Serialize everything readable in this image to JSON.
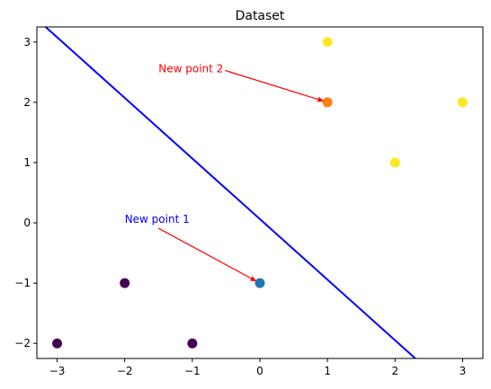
{
  "chart_data": {
    "type": "scatter",
    "title": "Dataset",
    "xlabel": "",
    "ylabel": "",
    "xlim": [
      -3.3,
      3.3
    ],
    "ylim": [
      -2.25,
      3.25
    ],
    "xticks": [
      -3,
      -2,
      -1,
      0,
      1,
      2,
      3
    ],
    "yticks": [
      -2,
      -1,
      0,
      1,
      2,
      3
    ],
    "xtick_labels": [
      "−3",
      "−2",
      "−1",
      "0",
      "1",
      "2",
      "3"
    ],
    "ytick_labels": [
      "−2",
      "−1",
      "0",
      "1",
      "2",
      "3"
    ],
    "grid": false,
    "points": [
      {
        "x": -3,
        "y": -2,
        "color": "#440154"
      },
      {
        "x": -2,
        "y": -1,
        "color": "#440154"
      },
      {
        "x": -1,
        "y": -2,
        "color": "#440154"
      },
      {
        "x": 1,
        "y": 3,
        "color": "#fde725"
      },
      {
        "x": 2,
        "y": 1,
        "color": "#fde725"
      },
      {
        "x": 3,
        "y": 2,
        "color": "#fde725"
      },
      {
        "x": 0,
        "y": -1,
        "color": "#1f77b4"
      },
      {
        "x": 1,
        "y": 2,
        "color": "#ff7f0e"
      }
    ],
    "decision_line": {
      "points": [
        [
          -3.3,
          3.38
        ],
        [
          2.3,
          -2.25
        ]
      ],
      "color": "#0000ff"
    },
    "annotations": [
      {
        "text": "New point 1",
        "color": "#0000ff",
        "text_x": -2,
        "text_y": 0,
        "target_x": 0,
        "target_y": -1,
        "arrow_color": "#ff0000"
      },
      {
        "text": "New point 2",
        "color": "#ff0000",
        "text_x": -1.5,
        "text_y": 2.5,
        "target_x": 1,
        "target_y": 2,
        "arrow_color": "#ff0000"
      }
    ]
  }
}
